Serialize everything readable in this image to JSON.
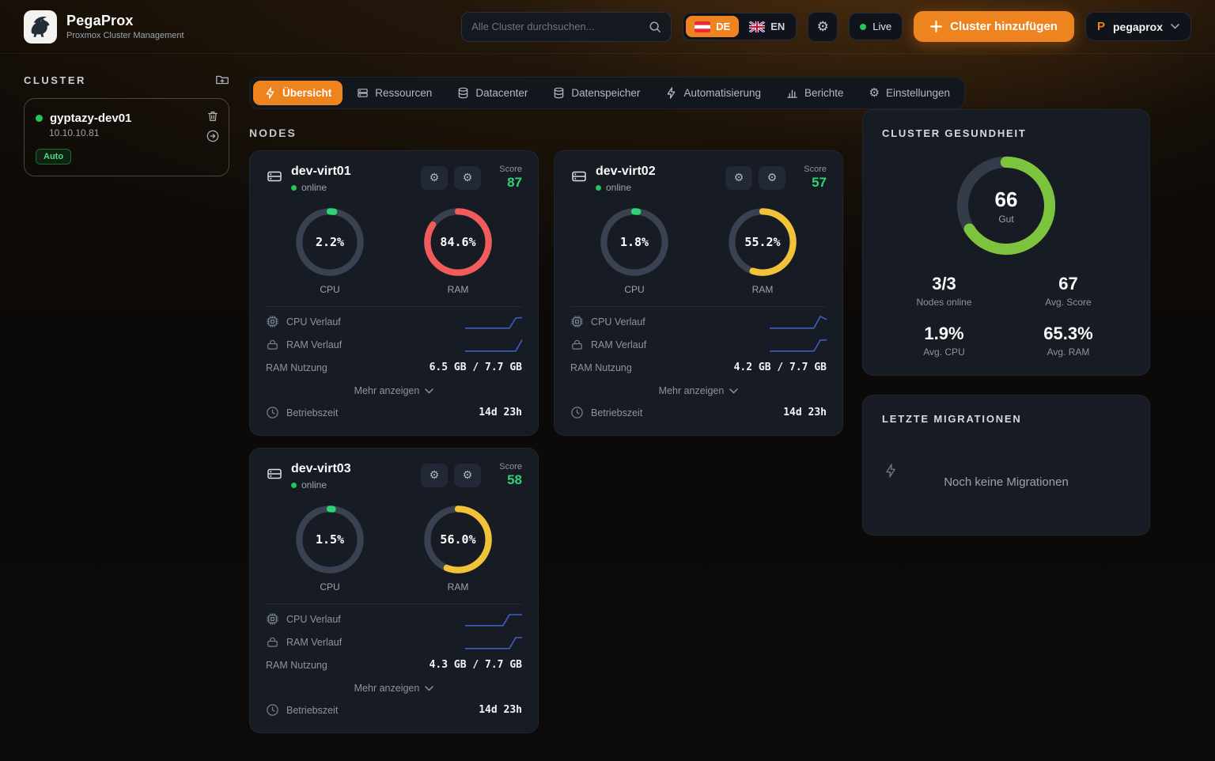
{
  "app": {
    "name": "PegaProx",
    "subtitle": "Proxmox Cluster Management"
  },
  "header": {
    "search_placeholder": "Alle Cluster durchsuchen...",
    "languages": [
      {
        "code": "DE"
      },
      {
        "code": "EN"
      }
    ],
    "live_label": "Live",
    "add_cluster_label": "Cluster hinzufügen",
    "user_initial": "P",
    "user_name": "pegaprox"
  },
  "sidebar": {
    "title": "CLUSTER",
    "cluster": {
      "name": "gyptazy-dev01",
      "ip": "10.10.10.81",
      "badge": "Auto"
    }
  },
  "tabs": [
    {
      "label": "Übersicht",
      "active": true
    },
    {
      "label": "Ressourcen"
    },
    {
      "label": "Datacenter"
    },
    {
      "label": "Datenspeicher"
    },
    {
      "label": "Automatisierung"
    },
    {
      "label": "Berichte"
    },
    {
      "label": "Einstellungen"
    }
  ],
  "sections": {
    "nodes": "NODES"
  },
  "labels": {
    "score": "Score",
    "online": "online",
    "cpu": "CPU",
    "ram": "RAM",
    "cpu_history": "CPU Verlauf",
    "ram_history": "RAM Verlauf",
    "ram_usage": "RAM Nutzung",
    "show_more": "Mehr anzeigen",
    "uptime": "Betriebszeit"
  },
  "colors": {
    "accent": "#ee8420",
    "online_green": "#22c55e",
    "score_green": "#2fd375",
    "cpu_arc": "#2fd375",
    "health_ring": "#7cc43d",
    "ram_high": "#f15b5b",
    "ram_mid": "#f2c339",
    "spark": "#3b5fc0"
  },
  "nodes": [
    {
      "name": "dev-virt01",
      "score": "87",
      "cpu_pct": "2.2%",
      "cpu_val": 2.2,
      "ram_pct": "84.6%",
      "ram_val": 84.6,
      "ram_color": "#f15b5b",
      "ram_usage": "6.5 GB / 7.7 GB",
      "uptime": "14d 23h",
      "cpu_spark": [
        0.07,
        0.07,
        0.07,
        0.07,
        0.07,
        0.07,
        0.07,
        0.07,
        0.82,
        0.86
      ],
      "ram_spark": [
        0.07,
        0.07,
        0.07,
        0.07,
        0.07,
        0.07,
        0.07,
        0.07,
        0.07,
        0.9
      ]
    },
    {
      "name": "dev-virt02",
      "score": "57",
      "cpu_pct": "1.8%",
      "cpu_val": 1.8,
      "ram_pct": "55.2%",
      "ram_val": 55.2,
      "ram_color": "#f2c339",
      "ram_usage": "4.2 GB / 7.7 GB",
      "uptime": "14d 23h",
      "cpu_spark": [
        0.07,
        0.07,
        0.07,
        0.07,
        0.07,
        0.07,
        0.07,
        0.07,
        0.95,
        0.7
      ],
      "ram_spark": [
        0.07,
        0.07,
        0.07,
        0.07,
        0.07,
        0.07,
        0.07,
        0.07,
        0.88,
        0.9
      ]
    },
    {
      "name": "dev-virt03",
      "score": "58",
      "cpu_pct": "1.5%",
      "cpu_val": 1.5,
      "ram_pct": "56.0%",
      "ram_val": 56.0,
      "ram_color": "#f2c339",
      "ram_usage": "4.3 GB / 7.7 GB",
      "uptime": "14d 23h",
      "cpu_spark": [
        0.07,
        0.07,
        0.07,
        0.07,
        0.07,
        0.07,
        0.07,
        0.88,
        0.88,
        0.88
      ],
      "ram_spark": [
        0.07,
        0.07,
        0.07,
        0.07,
        0.07,
        0.07,
        0.07,
        0.07,
        0.88,
        0.88
      ]
    }
  ],
  "health": {
    "title": "CLUSTER GESUNDHEIT",
    "score": "66",
    "score_val": 66,
    "status": "Gut",
    "stats": [
      {
        "value": "3/3",
        "label": "Nodes online"
      },
      {
        "value": "67",
        "label": "Avg. Score"
      },
      {
        "value": "1.9%",
        "label": "Avg. CPU"
      },
      {
        "value": "65.3%",
        "label": "Avg. RAM"
      }
    ]
  },
  "migrations": {
    "title": "LETZTE MIGRATIONEN",
    "empty": "Noch keine Migrationen"
  }
}
